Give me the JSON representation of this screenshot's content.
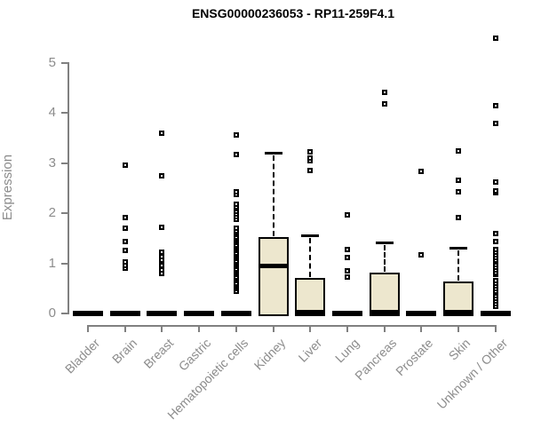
{
  "chart_data": {
    "type": "box",
    "title": "ENSG00000236053 - RP11-259F4.1",
    "ylabel": "Expression",
    "xlabel": "",
    "ylim": [
      0,
      5.6
    ],
    "yticks": [
      0,
      1,
      2,
      3,
      4,
      5
    ],
    "grid": false,
    "legend": false,
    "box_fill_color": "#EDE7CE",
    "axis_color": "#808080",
    "axis_text_color": "#8C8C8C",
    "categories": [
      "Bladder",
      "Brain",
      "Breast",
      "Gastric",
      "Hematopoietic cells",
      "Kidney",
      "Liver",
      "Lung",
      "Pancreas",
      "Prostate",
      "Skin",
      "Unknown / Other"
    ],
    "boxes": [
      {
        "category": "Bladder",
        "q1": 0,
        "median": 0,
        "q3": 0,
        "whisker_low": 0,
        "whisker_high": 0,
        "outliers": []
      },
      {
        "category": "Brain",
        "q1": 0,
        "median": 0,
        "q3": 0,
        "whisker_low": 0,
        "whisker_high": 0,
        "outliers": [
          0.91,
          0.96,
          1.02,
          1.25,
          1.43,
          1.7,
          1.92,
          2.95
        ]
      },
      {
        "category": "Breast",
        "q1": 0,
        "median": 0,
        "q3": 0,
        "whisker_low": 0,
        "whisker_high": 0,
        "outliers": [
          0.8,
          0.87,
          0.95,
          1.07,
          1.14,
          1.22,
          1.71,
          2.74,
          3.59
        ]
      },
      {
        "category": "Gastric",
        "q1": 0,
        "median": 0,
        "q3": 0,
        "whisker_low": 0,
        "whisker_high": 0,
        "outliers": []
      },
      {
        "category": "Hematopoietic cells",
        "q1": 0,
        "median": 0,
        "q3": 0,
        "whisker_low": 0,
        "whisker_high": 0,
        "outliers": [
          0.45,
          0.49,
          0.53,
          0.57,
          0.61,
          0.65,
          0.69,
          0.73,
          0.77,
          0.81,
          0.85,
          0.89,
          0.93,
          0.97,
          1.01,
          1.05,
          1.09,
          1.13,
          1.17,
          1.21,
          1.25,
          1.29,
          1.33,
          1.37,
          1.41,
          1.45,
          1.49,
          1.53,
          1.57,
          1.61,
          1.65,
          1.7,
          1.88,
          1.93,
          1.98,
          2.03,
          2.08,
          2.13,
          2.18,
          2.38,
          2.43,
          3.17,
          3.56
        ]
      },
      {
        "category": "Kidney",
        "q1": 0,
        "median": 0.96,
        "q3": 1.52,
        "whisker_low": 0,
        "whisker_high": 3.21,
        "outliers": []
      },
      {
        "category": "Liver",
        "q1": 0,
        "median": 0.03,
        "q3": 0.71,
        "whisker_low": 0,
        "whisker_high": 1.56,
        "outliers": [
          2.85,
          3.05,
          3.1,
          3.22
        ]
      },
      {
        "category": "Lung",
        "q1": 0,
        "median": 0,
        "q3": 0,
        "whisker_low": 0,
        "whisker_high": 0,
        "outliers": [
          0.73,
          0.85,
          1.11,
          1.28,
          1.97
        ]
      },
      {
        "category": "Pancreas",
        "q1": 0,
        "median": 0.03,
        "q3": 0.81,
        "whisker_low": 0,
        "whisker_high": 1.42,
        "outliers": [
          4.18,
          4.41
        ]
      },
      {
        "category": "Prostate",
        "q1": 0,
        "median": 0,
        "q3": 0,
        "whisker_low": 0,
        "whisker_high": 0,
        "outliers": [
          1.16,
          2.84
        ]
      },
      {
        "category": "Skin",
        "q1": 0,
        "median": 0.03,
        "q3": 0.64,
        "whisker_low": 0,
        "whisker_high": 1.31,
        "outliers": [
          1.92,
          2.42,
          2.65,
          3.24
        ]
      },
      {
        "category": "Unknown / Other",
        "q1": 0,
        "median": 0,
        "q3": 0,
        "whisker_low": 0,
        "whisker_high": 0,
        "outliers": [
          0.15,
          0.2,
          0.25,
          0.3,
          0.35,
          0.4,
          0.45,
          0.5,
          0.55,
          0.6,
          0.65,
          0.77,
          0.82,
          0.87,
          0.92,
          0.97,
          1.02,
          1.07,
          1.12,
          1.17,
          1.22,
          1.28,
          1.43,
          1.6,
          2.4,
          2.45,
          2.62,
          3.79,
          4.15,
          5.49
        ]
      }
    ]
  }
}
